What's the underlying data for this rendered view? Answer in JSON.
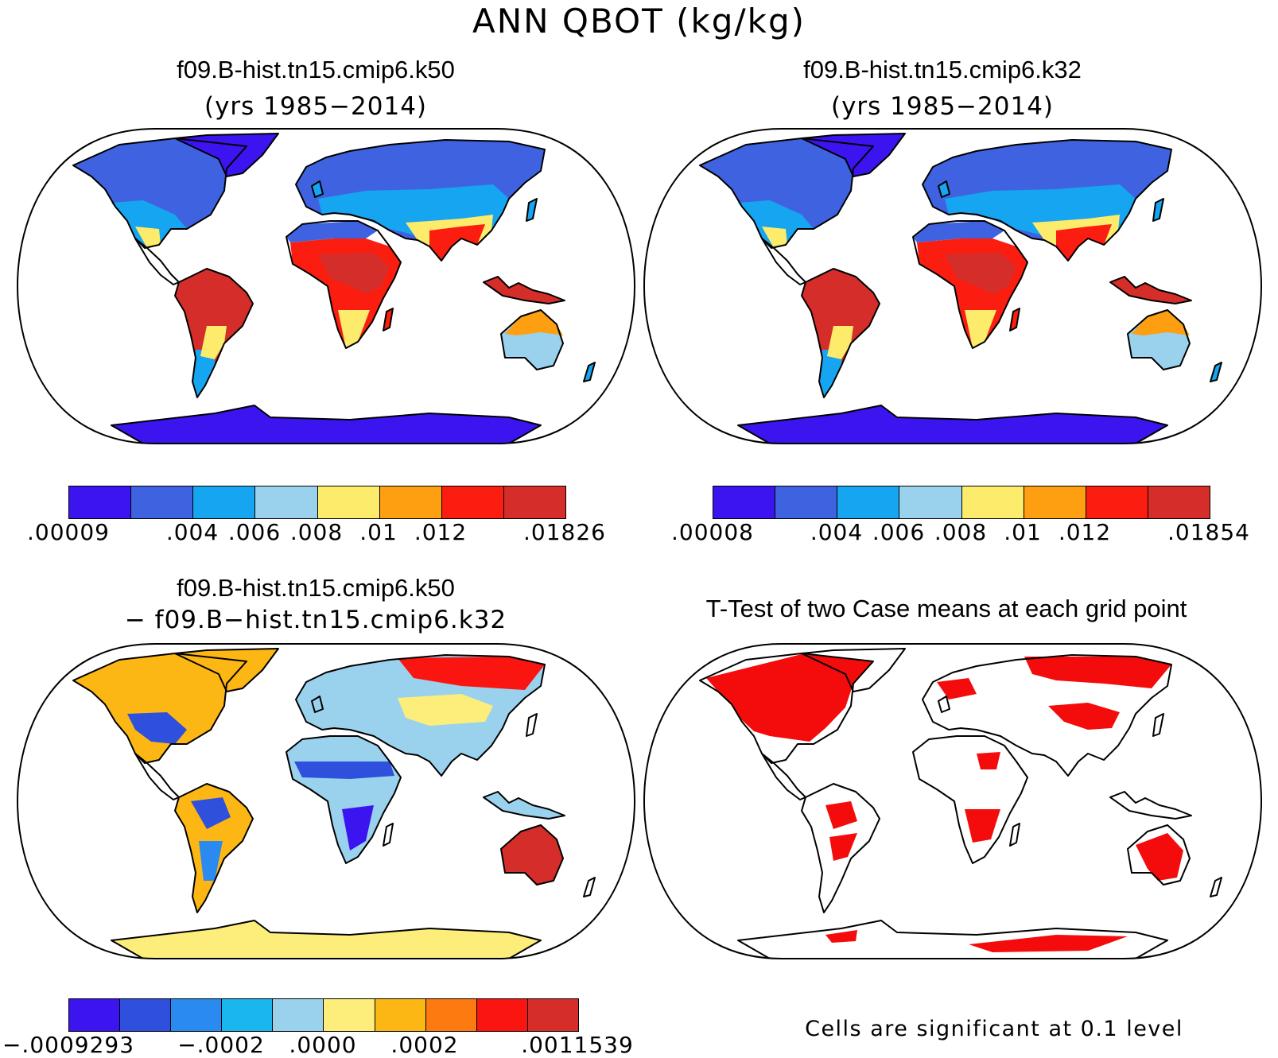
{
  "figure": {
    "title": "ANN QBOT (kg/kg)"
  },
  "panels": [
    {
      "id": "p1",
      "case_label": "f09.B-hist.tn15.cmip6.k50",
      "subtitle": "(yrs 1985−2014)",
      "colorbar": {
        "colors": [
          "#3b14f0",
          "#3f63e0",
          "#16a5f0",
          "#9ad2ee",
          "#fdeb6b",
          "#fd9f10",
          "#fb1e10",
          "#d52e2a"
        ],
        "labels": [
          ".00009",
          ".004",
          ".006",
          ".008",
          ".01",
          ".012",
          ".01826"
        ],
        "label_boundary_index": [
          0,
          2,
          3,
          4,
          5,
          6,
          8
        ]
      }
    },
    {
      "id": "p2",
      "case_label": "f09.B-hist.tn15.cmip6.k32",
      "subtitle": "(yrs 1985−2014)",
      "colorbar": {
        "colors": [
          "#3b14f0",
          "#3f63e0",
          "#16a5f0",
          "#9ad2ee",
          "#fdeb6b",
          "#fd9f10",
          "#fb1e10",
          "#d52e2a"
        ],
        "labels": [
          ".00008",
          ".004",
          ".006",
          ".008",
          ".01",
          ".012",
          ".01854"
        ],
        "label_boundary_index": [
          0,
          2,
          3,
          4,
          5,
          6,
          8
        ]
      }
    },
    {
      "id": "p3",
      "case_label": "f09.B-hist.tn15.cmip6.k50",
      "subtitle": "− f09.B−hist.tn15.cmip6.k32",
      "colorbar": {
        "colors": [
          "#3b14f0",
          "#2f4fdd",
          "#2a8af0",
          "#19b6f0",
          "#9ad2ee",
          "#fdee7b",
          "#fdb714",
          "#fd7a10",
          "#fb1510",
          "#d52e2a"
        ],
        "labels": [
          "−.0009293",
          "−.0002",
          ".0000",
          ".0002",
          ".0011539"
        ],
        "label_boundary_index": [
          0,
          3,
          5,
          7,
          10
        ]
      }
    },
    {
      "id": "p4",
      "case_label": "T-Test of two Case means at each grid point",
      "footnote": "Cells are significant at 0.1 level"
    }
  ],
  "icons": {
    "map_outline": "robinson-projection-world-map",
    "significant_cell_color": "#f40c0c"
  }
}
